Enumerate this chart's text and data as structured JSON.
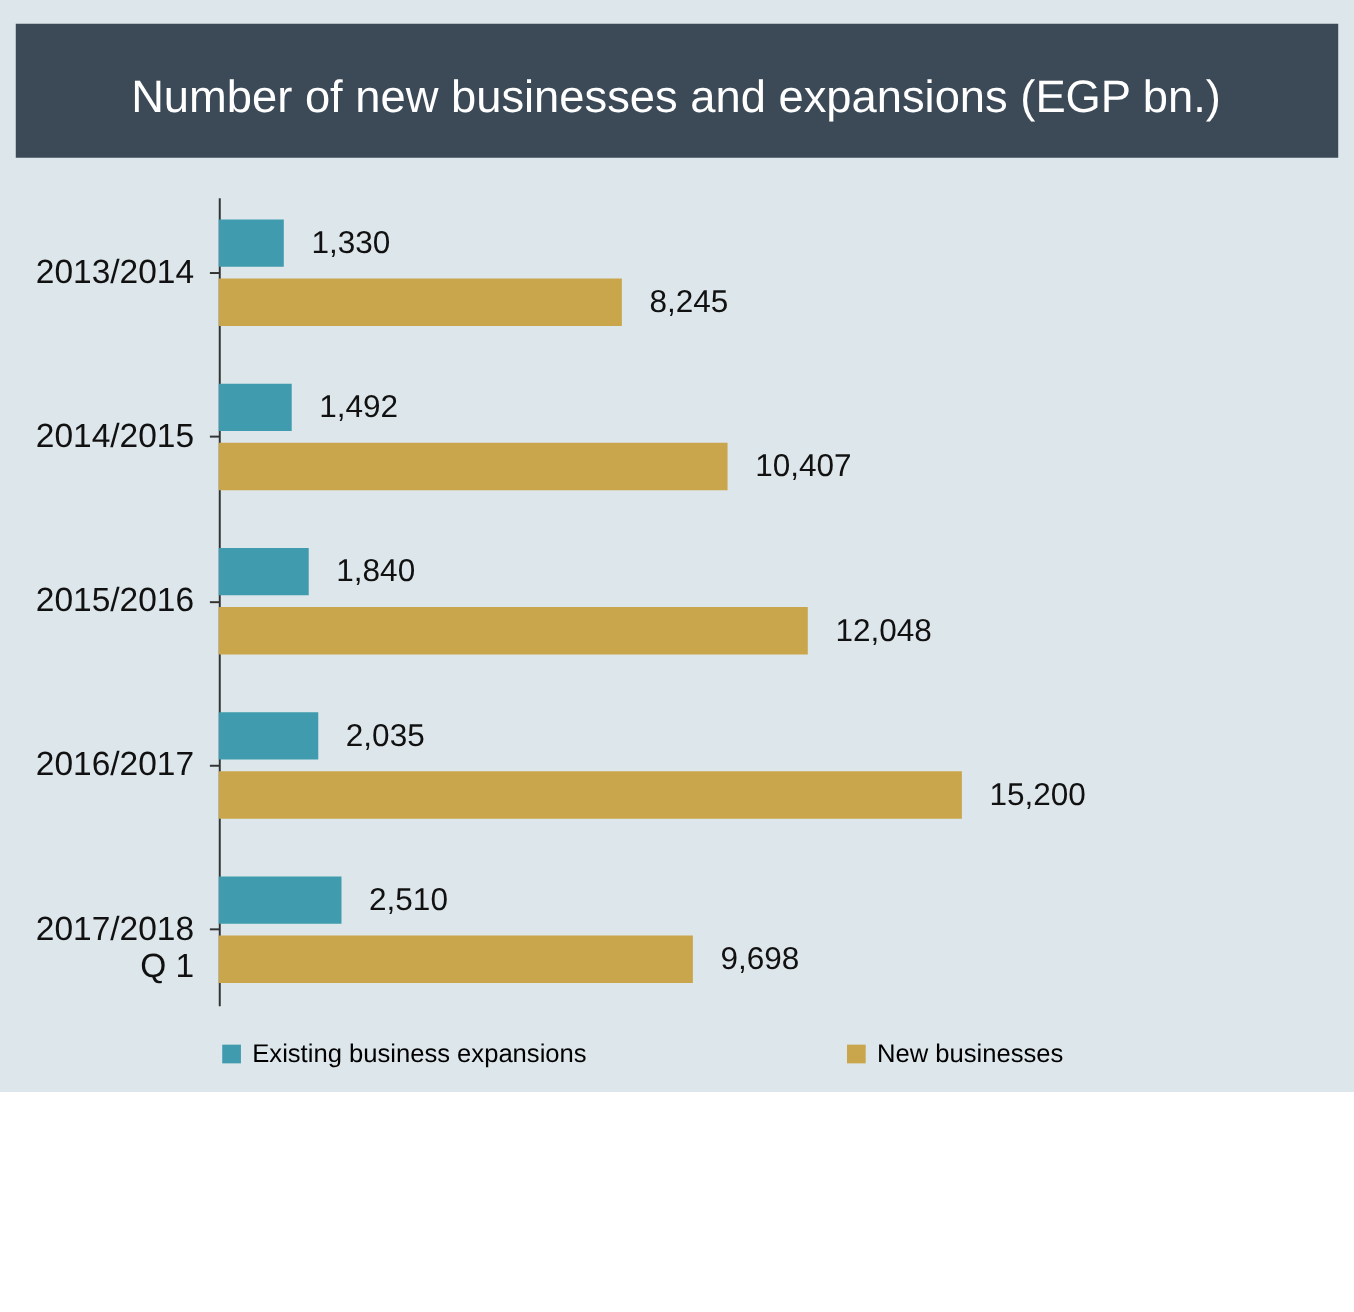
{
  "chart_data": {
    "type": "bar",
    "orientation": "horizontal",
    "title": "Number of new businesses and expansions (EGP bn.)",
    "categories": [
      "2013/2014",
      "2014/2015",
      "2015/2016",
      "2016/2017",
      "2017/2018\nQ 1"
    ],
    "series": [
      {
        "name": "Existing business expansions",
        "color": "#3f9bad",
        "values": [
          1330,
          1492,
          1840,
          2035,
          2510
        ],
        "value_labels": [
          "1,330",
          "1,492",
          "1,840",
          "2,035",
          "2,510"
        ]
      },
      {
        "name": "New businesses",
        "color": "#c9a64b",
        "values": [
          8245,
          10407,
          12048,
          15200,
          9698
        ],
        "value_labels": [
          "8,245",
          "10,407",
          "12,048",
          "15,200",
          "9,698"
        ]
      }
    ],
    "legend": "bottom",
    "grid": false
  }
}
